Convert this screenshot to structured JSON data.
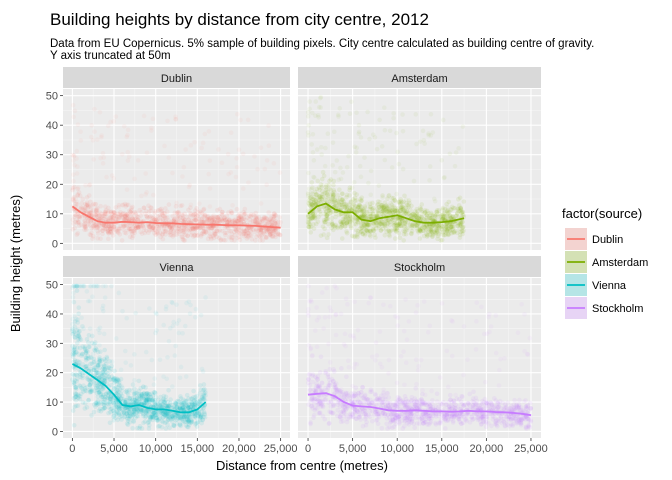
{
  "title": "Building heights by distance from city centre, 2012",
  "subtitle_lines": [
    "Data from EU Copernicus. 5% sample of building pixels. City centre calculated as building centre of gravity.",
    "Y axis truncated at 50m"
  ],
  "chart_data": {
    "type": "scatter",
    "facets": [
      "Dublin",
      "Amsterdam",
      "Vienna",
      "Stockholm"
    ],
    "xlabel": "Distance from centre (metres)",
    "ylabel": "Building height (metres)",
    "xlim": [
      0,
      25000
    ],
    "ylim": [
      0,
      50
    ],
    "x_ticks": [
      0,
      5000,
      10000,
      15000,
      20000,
      25000
    ],
    "x_tick_labels": [
      "0",
      "5,000",
      "10,000",
      "15,000",
      "20,000",
      "25,000"
    ],
    "y_ticks": [
      0,
      10,
      20,
      30,
      40,
      50
    ],
    "y_tick_labels": [
      "0",
      "10",
      "20",
      "30",
      "40",
      "50"
    ],
    "grid": true,
    "legend_title": "factor(source)",
    "legend_position": "right",
    "series": [
      {
        "name": "Dublin",
        "color": "#F8766D",
        "x_range": [
          0,
          25000
        ],
        "trend_x": [
          0,
          1000,
          2000,
          3000,
          4000,
          5000,
          6000,
          7000,
          8000,
          9000,
          10000,
          11000,
          12000,
          13000,
          14000,
          15000,
          16000,
          17000,
          18000,
          19000,
          20000,
          21000,
          22000,
          23000,
          24000,
          25000
        ],
        "trend_y": [
          12.5,
          10.5,
          9.0,
          7.5,
          7.0,
          7.0,
          7.3,
          7.2,
          7.0,
          7.2,
          6.9,
          6.8,
          6.8,
          6.6,
          6.5,
          6.4,
          6.3,
          6.3,
          6.2,
          6.1,
          6.1,
          6.0,
          5.9,
          5.7,
          5.5,
          5.3
        ]
      },
      {
        "name": "Amsterdam",
        "color": "#7CAE00",
        "x_range": [
          0,
          17500
        ],
        "trend_x": [
          0,
          1000,
          2000,
          3000,
          4000,
          5000,
          6000,
          7000,
          8000,
          9000,
          10000,
          11000,
          12000,
          13000,
          14000,
          15000,
          16000,
          17500
        ],
        "trend_y": [
          10.0,
          12.5,
          13.5,
          11.5,
          10.5,
          10.5,
          8.0,
          7.5,
          8.5,
          9.0,
          9.5,
          8.5,
          7.5,
          7.0,
          7.0,
          7.2,
          7.5,
          8.5
        ]
      },
      {
        "name": "Vienna",
        "color": "#00BFC4",
        "x_range": [
          0,
          16000
        ],
        "trend_x": [
          0,
          1000,
          2000,
          3000,
          4000,
          5000,
          6000,
          7000,
          8000,
          9000,
          10000,
          11000,
          12000,
          13000,
          14000,
          15000,
          16000
        ],
        "trend_y": [
          23.0,
          21.5,
          19.5,
          17.5,
          15.5,
          12.5,
          9.0,
          8.5,
          9.0,
          8.0,
          7.5,
          7.5,
          7.0,
          6.5,
          6.5,
          7.5,
          10.0
        ]
      },
      {
        "name": "Stockholm",
        "color": "#C77CFF",
        "x_range": [
          0,
          25000
        ],
        "trend_x": [
          0,
          1000,
          2000,
          3000,
          4000,
          5000,
          6000,
          7000,
          8000,
          9000,
          10000,
          11000,
          12000,
          13000,
          14000,
          15000,
          16000,
          17000,
          18000,
          19000,
          20000,
          21000,
          22000,
          23000,
          24000,
          25000
        ],
        "trend_y": [
          12.5,
          12.8,
          13.0,
          12.0,
          10.0,
          8.8,
          8.5,
          8.3,
          7.8,
          7.2,
          7.0,
          7.0,
          7.2,
          7.0,
          6.8,
          6.8,
          6.7,
          6.8,
          7.0,
          6.8,
          6.8,
          6.6,
          6.5,
          6.3,
          6.0,
          5.5
        ]
      }
    ]
  }
}
